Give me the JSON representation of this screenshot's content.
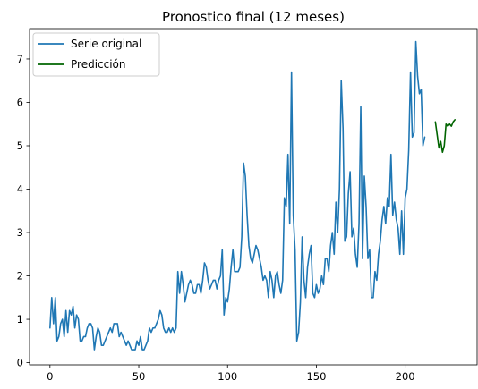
{
  "chart_data": {
    "type": "line",
    "title": "Pronostico final (12 meses)",
    "xlabel": "",
    "ylabel": "",
    "xlim": [
      -11.5,
      240.5
    ],
    "ylim": [
      -0.05,
      7.7
    ],
    "xticks": [
      0,
      50,
      100,
      150,
      200
    ],
    "yticks": [
      0,
      1,
      2,
      3,
      4,
      5,
      6,
      7
    ],
    "legend_position": "upper-left",
    "grid": false,
    "series": [
      {
        "name": "Serie original",
        "color": "#1f77b4",
        "x_start": 0,
        "values": [
          0.8,
          1.5,
          0.9,
          1.5,
          0.5,
          0.6,
          0.9,
          1.0,
          0.6,
          1.2,
          0.7,
          1.2,
          1.1,
          1.3,
          0.8,
          1.1,
          1.0,
          0.5,
          0.5,
          0.6,
          0.6,
          0.8,
          0.9,
          0.9,
          0.8,
          0.3,
          0.6,
          0.8,
          0.7,
          0.4,
          0.4,
          0.5,
          0.6,
          0.7,
          0.8,
          0.7,
          0.9,
          0.9,
          0.9,
          0.6,
          0.7,
          0.6,
          0.5,
          0.4,
          0.5,
          0.4,
          0.3,
          0.3,
          0.3,
          0.5,
          0.4,
          0.6,
          0.3,
          0.3,
          0.4,
          0.5,
          0.8,
          0.7,
          0.8,
          0.8,
          0.9,
          1.0,
          1.2,
          1.1,
          0.8,
          0.7,
          0.7,
          0.8,
          0.7,
          0.8,
          0.7,
          0.8,
          2.1,
          1.6,
          2.1,
          1.8,
          1.4,
          1.6,
          1.8,
          1.9,
          1.8,
          1.6,
          1.6,
          1.8,
          1.8,
          1.6,
          1.9,
          2.3,
          2.2,
          1.9,
          1.7,
          1.8,
          1.9,
          1.9,
          1.7,
          1.9,
          2.0,
          2.6,
          1.1,
          1.5,
          1.4,
          1.7,
          2.2,
          2.6,
          2.1,
          2.1,
          2.1,
          2.2,
          2.9,
          4.6,
          4.3,
          3.4,
          2.7,
          2.4,
          2.3,
          2.5,
          2.7,
          2.6,
          2.4,
          2.2,
          1.9,
          2.0,
          1.9,
          1.5,
          2.1,
          1.9,
          1.5,
          2.0,
          2.1,
          1.8,
          1.6,
          1.9,
          3.8,
          3.6,
          4.8,
          3.2,
          6.7,
          3.4,
          2.6,
          0.5,
          0.7,
          1.4,
          2.9,
          1.9,
          1.5,
          2.2,
          2.5,
          2.7,
          1.6,
          1.5,
          1.8,
          1.6,
          1.7,
          2.0,
          1.8,
          2.4,
          2.4,
          2.1,
          2.7,
          3.0,
          2.5,
          3.7,
          3.0,
          4.0,
          6.5,
          5.4,
          2.8,
          2.9,
          3.9,
          4.4,
          2.9,
          3.1,
          2.5,
          2.2,
          3.2,
          5.9,
          2.4,
          4.3,
          3.6,
          2.4,
          2.6,
          1.5,
          1.5,
          2.1,
          1.9,
          2.5,
          2.8,
          3.3,
          3.6,
          3.2,
          3.8,
          3.6,
          4.8,
          3.4,
          3.7,
          3.3,
          3.1,
          2.5,
          3.5,
          2.5,
          3.8,
          4.0,
          4.9,
          6.7,
          5.2,
          5.3,
          7.4,
          6.6,
          6.2,
          6.3,
          5.0,
          5.2
        ]
      },
      {
        "name": "Predicción",
        "color": "#006400",
        "x_start": 217,
        "values": [
          5.55,
          5.25,
          4.95,
          5.1,
          4.85,
          5.0,
          5.5,
          5.45,
          5.5,
          5.45,
          5.55,
          5.6
        ]
      }
    ]
  }
}
